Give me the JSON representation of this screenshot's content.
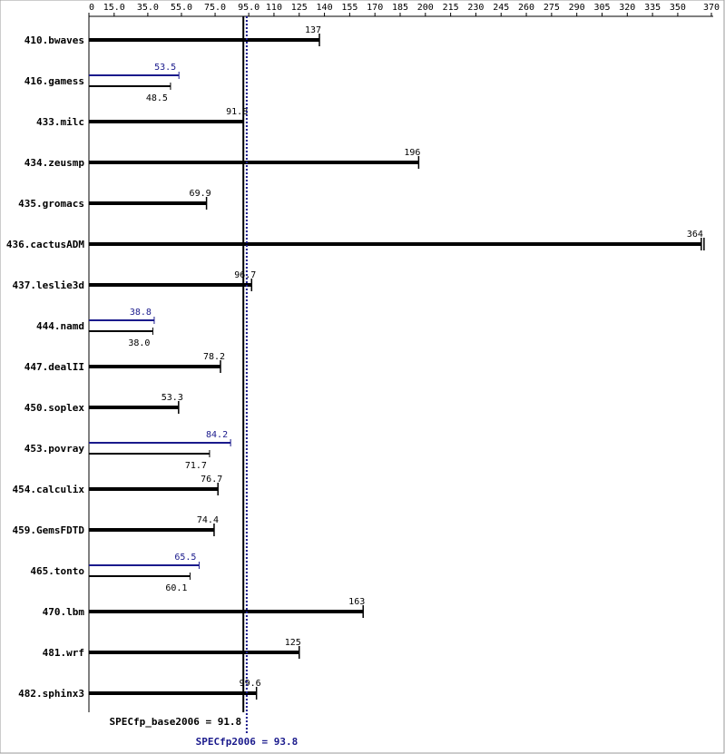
{
  "chart_data": {
    "type": "bar",
    "title": "",
    "xlabel": "",
    "ylabel": "",
    "xlim": [
      0,
      370
    ],
    "ticks": [
      "0",
      "15.0",
      "35.0",
      "55.0",
      "75.0",
      "95.0",
      "110",
      "125",
      "140",
      "155",
      "170",
      "185",
      "200",
      "215",
      "230",
      "245",
      "260",
      "275",
      "290",
      "305",
      "320",
      "335",
      "350",
      "370"
    ],
    "tick_values": [
      0,
      15,
      35,
      55,
      75,
      95,
      110,
      125,
      140,
      155,
      170,
      185,
      200,
      215,
      230,
      245,
      260,
      275,
      290,
      305,
      320,
      335,
      350,
      370
    ],
    "categories": [
      "410.bwaves",
      "416.gamess",
      "433.milc",
      "434.zeusmp",
      "435.gromacs",
      "436.cactusADM",
      "437.leslie3d",
      "444.namd",
      "447.dealII",
      "450.soplex",
      "453.povray",
      "454.calculix",
      "459.GemsFDTD",
      "465.tonto",
      "470.lbm",
      "481.wrf",
      "482.sphinx3"
    ],
    "series": [
      {
        "role": "base",
        "color": "#000000",
        "values": [
          137,
          48.5,
          91.8,
          196,
          69.9,
          364,
          96.7,
          38.0,
          78.2,
          53.3,
          71.7,
          76.7,
          74.4,
          60.1,
          163,
          125,
          99.6
        ],
        "labels": [
          "137",
          "48.5",
          "91.8",
          "196",
          "69.9",
          "364",
          "96.7",
          "38.0",
          "78.2",
          "53.3",
          "71.7",
          "76.7",
          "74.4",
          "60.1",
          "163",
          "125",
          "99.6"
        ]
      },
      {
        "role": "peak",
        "color": "#1a1a8c",
        "values": [
          null,
          53.5,
          null,
          null,
          null,
          null,
          null,
          38.8,
          null,
          null,
          84.2,
          null,
          null,
          65.5,
          null,
          null,
          null
        ],
        "labels": [
          "",
          "53.5",
          "",
          "",
          "",
          "",
          "",
          "38.8",
          "",
          "",
          "84.2",
          "",
          "",
          "65.5",
          "",
          "",
          ""
        ]
      }
    ],
    "reference_lines": [
      {
        "role": "base",
        "value": 91.8,
        "label": "SPECfp_base2006 = 91.8",
        "color": "#000000",
        "style": "solid"
      },
      {
        "role": "peak",
        "value": 93.8,
        "label": "SPECfp2006 = 93.8",
        "color": "#1a1a8c",
        "style": "dotted"
      }
    ],
    "grid": false,
    "legend": "none"
  }
}
